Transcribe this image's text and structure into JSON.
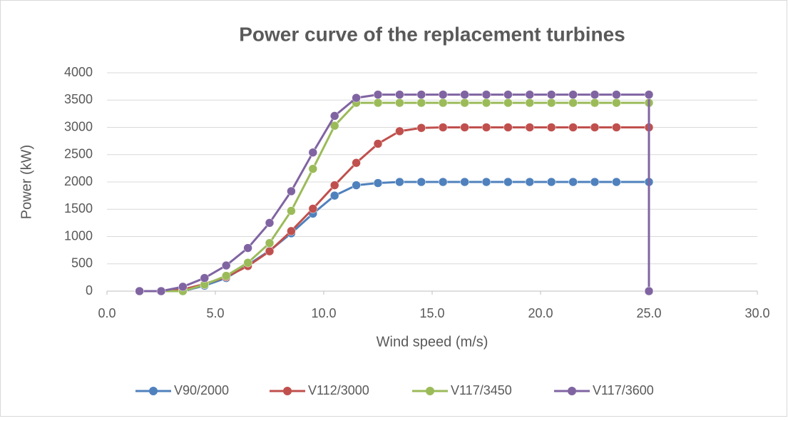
{
  "chart_data": {
    "type": "line",
    "title": "Power curve of the replacement turbines",
    "x_label": "Wind speed (m/s)",
    "y_label": "Power (kW)",
    "x": [
      1.5,
      2.5,
      3.5,
      4.5,
      5.5,
      6.5,
      7.5,
      8.5,
      9.5,
      10.5,
      11.5,
      12.5,
      13.5,
      14.5,
      15.5,
      16.5,
      17.5,
      18.5,
      19.5,
      20.5,
      21.5,
      22.5,
      23.5,
      25,
      25
    ],
    "series": [
      {
        "name": "V90/2000",
        "color": "#4f81bd",
        "values": [
          0,
          0,
          0,
          100,
          240,
          480,
          740,
          1060,
          1420,
          1750,
          1940,
          1980,
          2000,
          2000,
          2000,
          2000,
          2000,
          2000,
          2000,
          2000,
          2000,
          2000,
          2000,
          2000,
          0
        ]
      },
      {
        "name": "V112/3000",
        "color": "#c0504d",
        "values": [
          0,
          0,
          30,
          130,
          260,
          460,
          730,
          1100,
          1510,
          1940,
          2350,
          2700,
          2930,
          2990,
          3000,
          3000,
          3000,
          3000,
          3000,
          3000,
          3000,
          3000,
          3000,
          3000,
          0
        ]
      },
      {
        "name": "V117/3450",
        "color": "#9bbb59",
        "values": [
          0,
          0,
          0,
          120,
          280,
          520,
          880,
          1470,
          2240,
          3030,
          3450,
          3450,
          3450,
          3450,
          3450,
          3450,
          3450,
          3450,
          3450,
          3450,
          3450,
          3450,
          3450,
          3450,
          0
        ]
      },
      {
        "name": "V117/3600",
        "color": "#8064a2",
        "values": [
          0,
          0,
          80,
          240,
          470,
          790,
          1250,
          1830,
          2540,
          3210,
          3540,
          3600,
          3600,
          3600,
          3600,
          3600,
          3600,
          3600,
          3600,
          3600,
          3600,
          3600,
          3600,
          3600,
          0
        ]
      }
    ],
    "xlim": [
      0,
      30
    ],
    "xticks": [
      {
        "value": 0,
        "label": "0.0"
      },
      {
        "value": 5,
        "label": "5.0"
      },
      {
        "value": 10,
        "label": "10.0"
      },
      {
        "value": 15,
        "label": "15.0"
      },
      {
        "value": 20,
        "label": "20.0"
      },
      {
        "value": 25,
        "label": "25.0"
      },
      {
        "value": 30,
        "label": "30.0"
      }
    ],
    "ylim": [
      0,
      4000
    ],
    "yticks": [
      0,
      500,
      1000,
      1500,
      2000,
      2500,
      3000,
      3500,
      4000
    ],
    "grid": true,
    "legend": "bottom"
  }
}
